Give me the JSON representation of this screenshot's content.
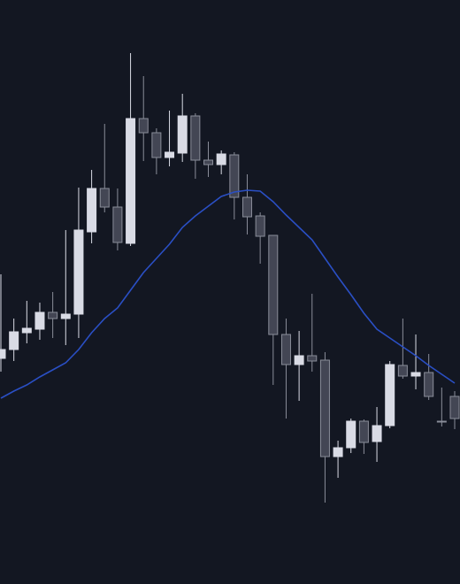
{
  "chart_data": {
    "type": "candlestick",
    "background": "#131722",
    "up_color": "#d9dbe5",
    "down_color": "#434654",
    "down_border": "#8a8d99",
    "ylim": [
      0,
      660
    ],
    "categories": [
      null,
      null,
      null,
      null,
      null,
      null,
      null,
      null,
      null,
      null,
      null,
      null,
      null,
      null,
      null,
      null,
      null,
      null,
      null,
      null,
      null,
      null,
      null,
      null,
      null,
      null,
      null,
      null,
      null,
      null,
      null,
      null,
      null,
      null,
      null,
      null
    ],
    "open": [
      255,
      265,
      284,
      288,
      307,
      300,
      305,
      398,
      447,
      426,
      385,
      526,
      510,
      482,
      487,
      529,
      479,
      474,
      485,
      437,
      416,
      394,
      282,
      248,
      258,
      253,
      144,
      154,
      184,
      161,
      179,
      247,
      235,
      239,
      184,
      212
    ],
    "high": [
      350,
      300,
      320,
      318,
      330,
      400,
      448,
      468,
      520,
      447,
      600,
      574,
      515,
      535,
      554,
      532,
      500,
      490,
      488,
      463,
      420,
      394,
      300,
      286,
      328,
      262,
      162,
      187,
      186,
      200,
      252,
      300,
      282,
      260,
      222,
      218
    ],
    "low": [
      240,
      252,
      272,
      276,
      278,
      270,
      278,
      385,
      420,
      377,
      382,
      478,
      463,
      472,
      477,
      458,
      460,
      463,
      412,
      395,
      362,
      225,
      187,
      207,
      240,
      92,
      120,
      148,
      147,
      138,
      176,
      232,
      220,
      208,
      178,
      175
    ],
    "close": [
      265,
      285,
      289,
      307,
      300,
      305,
      400,
      447,
      426,
      386,
      526,
      510,
      482,
      488,
      529,
      479,
      474,
      486,
      437,
      415,
      393,
      282,
      248,
      258,
      252,
      144,
      154,
      184,
      160,
      179,
      248,
      235,
      239,
      212,
      183,
      187
    ],
    "moving_average": {
      "color": "#2a4fc4",
      "values": [
        210,
        218,
        225,
        234,
        242,
        250,
        265,
        284,
        300,
        312,
        332,
        352,
        368,
        384,
        403,
        416,
        427,
        438,
        443,
        445,
        444,
        432,
        417,
        403,
        389,
        368,
        347,
        327,
        306,
        288,
        278,
        268,
        258,
        247,
        237,
        227
      ]
    }
  }
}
